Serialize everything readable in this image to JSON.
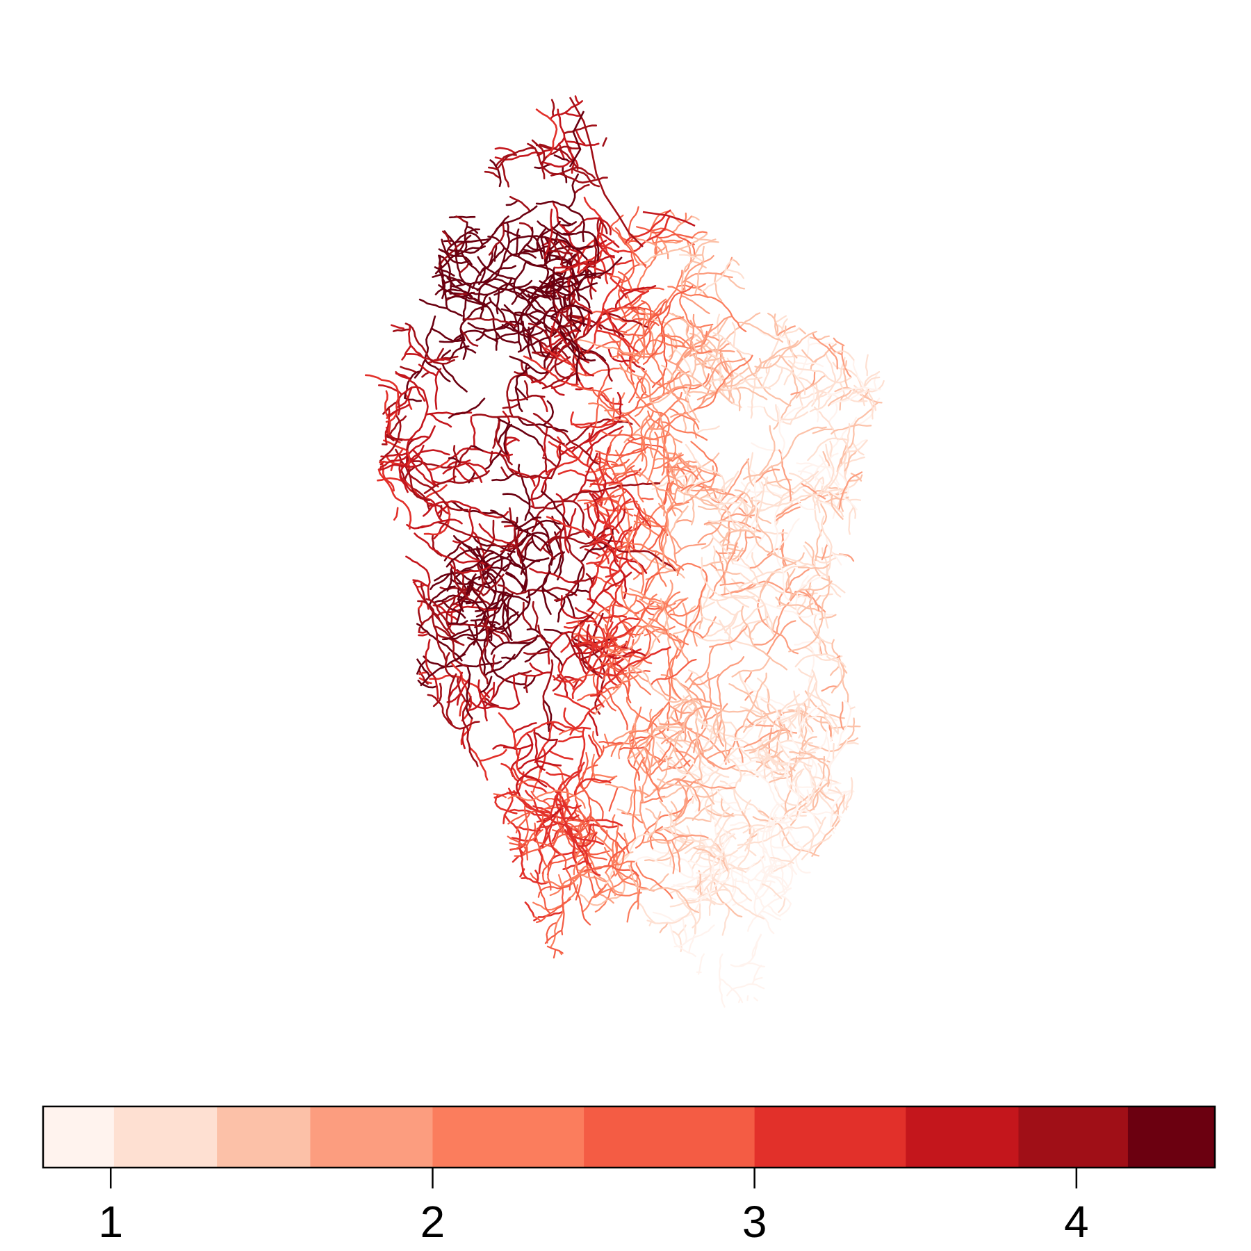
{
  "map": {
    "palette": [
      "#fff5f0",
      "#fee0d2",
      "#fcbba1",
      "#fc9272",
      "#fb6a4a",
      "#ef3b2c",
      "#cb181d",
      "#a50f15",
      "#67000d"
    ],
    "legend": {
      "breaks": [
        0.79,
        1.01,
        1.33,
        1.62,
        2.0,
        2.47,
        3.0,
        3.47,
        3.82,
        4.16,
        4.43
      ],
      "colors": [
        "#fff3ee",
        "#fee0d2",
        "#fcc1a8",
        "#fc9d7f",
        "#fb7d5d",
        "#f45c44",
        "#e2302a",
        "#c4161c",
        "#a00f17",
        "#6b0010"
      ],
      "ticks": [
        {
          "value": 1,
          "label": "1"
        },
        {
          "value": 2,
          "label": "2"
        },
        {
          "value": 3,
          "label": "3"
        },
        {
          "value": 4,
          "label": "4"
        }
      ]
    }
  }
}
